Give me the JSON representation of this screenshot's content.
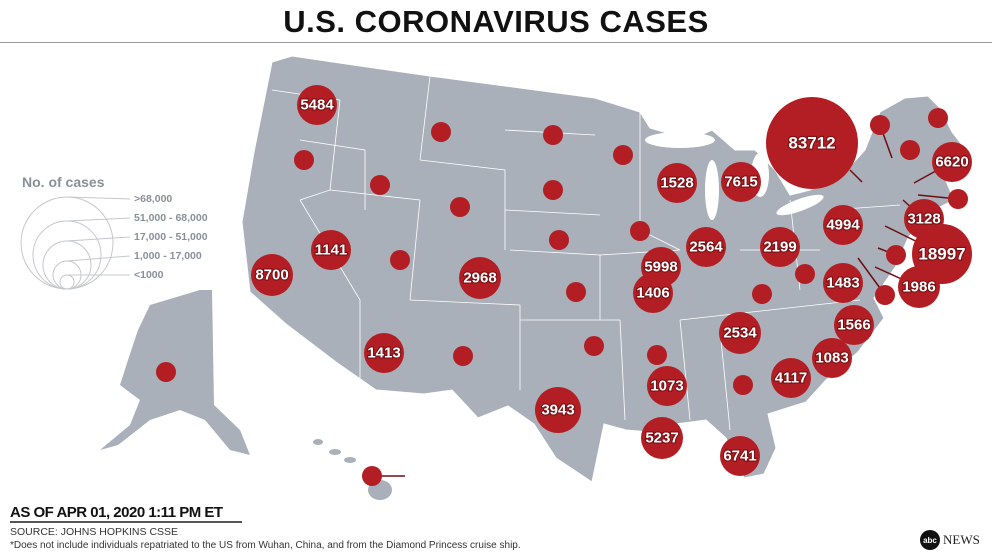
{
  "title": "U.S. CORONAVIRUS CASES",
  "legend": {
    "title": "No. of cases",
    "items": [
      ">68,000",
      "51,000 - 68,000",
      "17,000 - 51,000",
      "1,000 - 17,000",
      "<1000"
    ]
  },
  "footer": {
    "as_of": "AS OF APR 01, 2020 1:11 PM ET",
    "source": "SOURCE: JOHNS HOPKINS CSSE",
    "note": "*Does not include individuals repatriated to the US from Wuhan, China, and from the Diamond Princess cruise ship.",
    "logo_mark": "abc",
    "logo_text": "NEWS"
  },
  "colors": {
    "map": "#a9b0ba",
    "bubble": "#b21e23",
    "border": "#ffffff"
  },
  "labeled_cases": {
    "washington": "5484",
    "california": "8700",
    "nevada": "1141",
    "colorado": "2968",
    "arizona": "1413",
    "texas": "3943",
    "wisconsin": "1528",
    "michigan": "7615",
    "new_york": "83712",
    "massachusetts": "6620",
    "connecticut": "3128",
    "pennsylvania": "4994",
    "new_jersey": "18997",
    "maryland": "1986",
    "illinois": "5998",
    "indiana": "2564",
    "ohio": "2199",
    "missouri": "1406",
    "virginia": "1483",
    "north_carolina": "1566",
    "tennessee": "2534",
    "south_carolina": "1083",
    "georgia": "4117",
    "mississippi": "1073",
    "louisiana": "5237",
    "florida": "6741"
  }
}
